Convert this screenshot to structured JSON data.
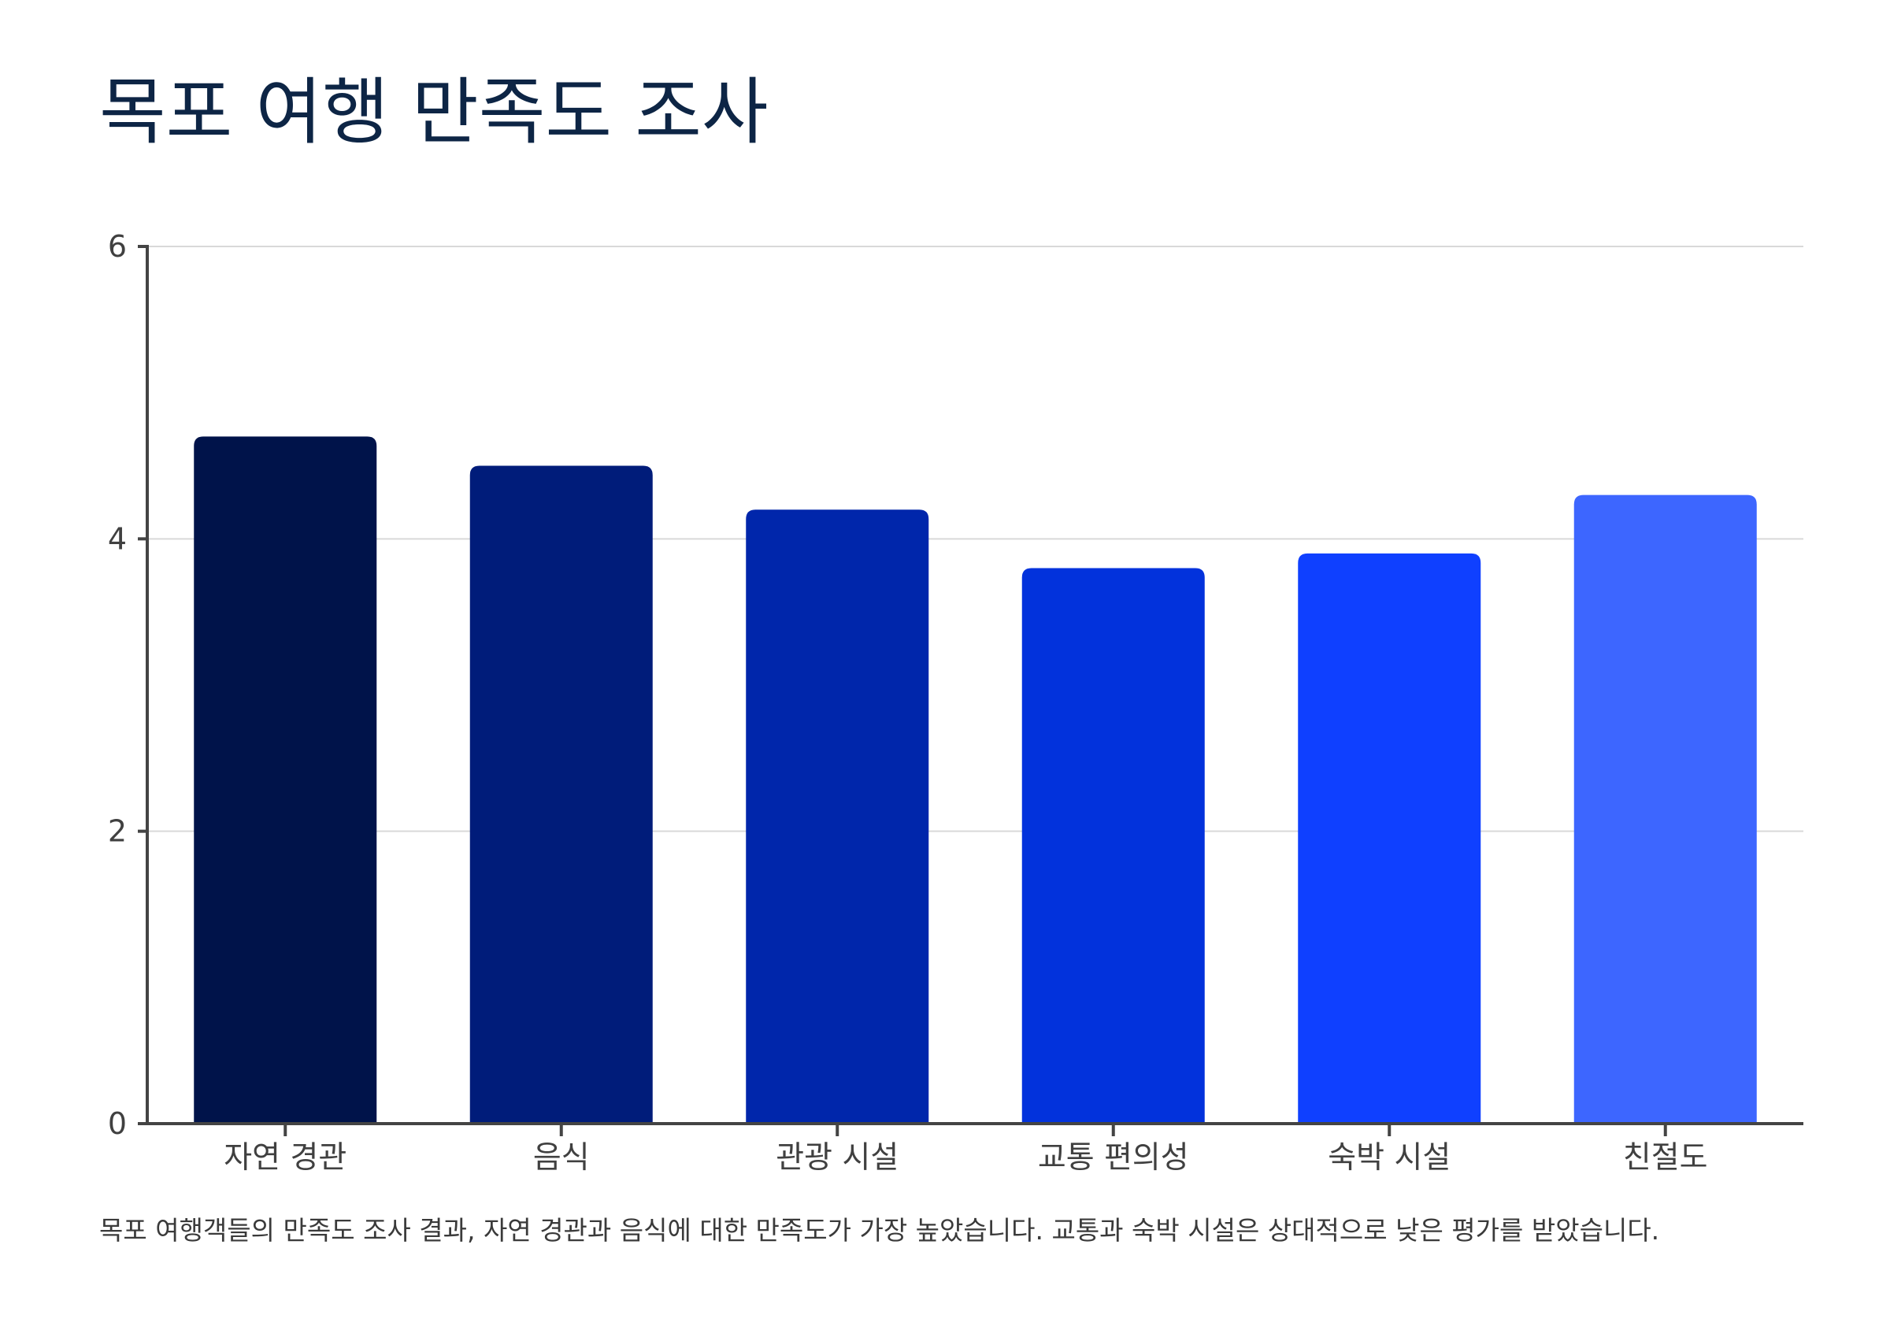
{
  "chart_data": {
    "type": "bar",
    "title": "목포 여행 만족도 조사",
    "caption": "목포 여행객들의 만족도 조사 결과, 자연 경관과 음식에 대한 만족도가 가장 높았습니다. 교통과 숙박 시설은 상대적으로 낮은 평가를 받았습니다.",
    "categories": [
      "자연 경관",
      "음식",
      "관광 시설",
      "교통 편의성",
      "숙박 시설",
      "친절도"
    ],
    "values": [
      4.7,
      4.5,
      4.2,
      3.8,
      3.9,
      4.3
    ],
    "colors": [
      "#00134a",
      "#001c7a",
      "#0026ab",
      "#0232dc",
      "#0f40ff",
      "#3d66ff"
    ],
    "ylim": [
      0,
      6
    ],
    "yticks": [
      0,
      2,
      4,
      6
    ],
    "xlabel": "",
    "ylabel": "",
    "grid": true
  }
}
